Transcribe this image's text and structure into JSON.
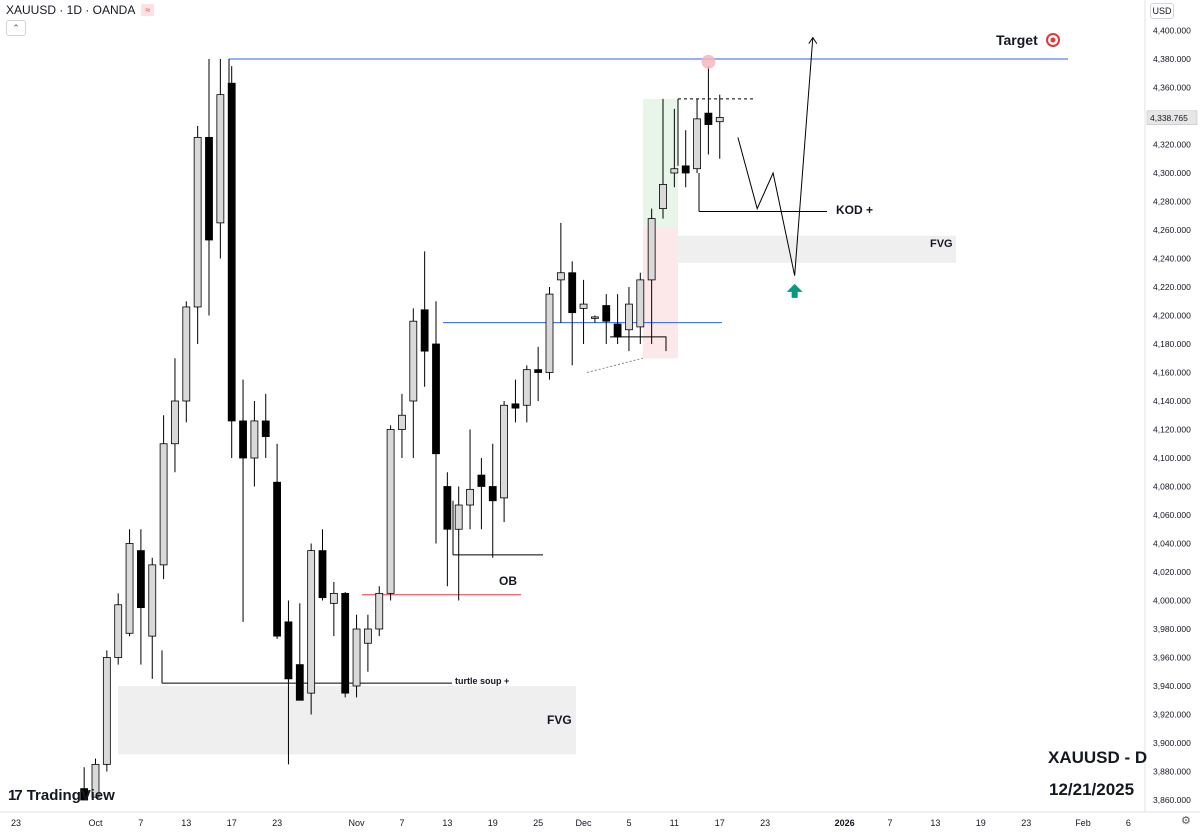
{
  "header": {
    "title": "XAUUSD · 1D · OANDA",
    "badge": "≈"
  },
  "currency_button": "USD",
  "brand": {
    "logo_mark": "17",
    "name": "TradingView"
  },
  "watermark": {
    "symbol": "XAUUSD - D",
    "date": "12/21/2025"
  },
  "colors": {
    "bull_fill": "#d9d9d9",
    "bear_fill": "#000000",
    "wick": "#000000",
    "target_line": "#2962ff",
    "level_line": "#2962ff",
    "ob_line": "#f23645",
    "fvg_zone": "#efefef",
    "green_zone": "#e8f5e9",
    "red_zone": "#fce8e8",
    "arrow_up": "#089981"
  },
  "chart_data": {
    "type": "candlestick",
    "symbol": "XAUUSD",
    "timeframe": "1D",
    "y_axis": {
      "min": 3860,
      "max": 4400,
      "step": 20,
      "ticks": [
        "3,860.000",
        "3,880.000",
        "3,900.000",
        "3,920.000",
        "3,940.000",
        "3,960.000",
        "3,980.000",
        "4,000.000",
        "4,020.000",
        "4,040.000",
        "4,060.000",
        "4,080.000",
        "4,100.000",
        "4,120.000",
        "4,140.000",
        "4,160.000",
        "4,180.000",
        "4,200.000",
        "4,220.000",
        "4,240.000",
        "4,260.000",
        "4,280.000",
        "4,300.000",
        "4,320.000",
        "4,340.000",
        "4,360.000",
        "4,380.000",
        "4,400.000"
      ],
      "last_price": 4338.765,
      "last_price_label": "4,338.765"
    },
    "x_axis": {
      "ticks": [
        {
          "label": "23",
          "bar": -7
        },
        {
          "label": "Oct",
          "bar": 0
        },
        {
          "label": "7",
          "bar": 4
        },
        {
          "label": "13",
          "bar": 8
        },
        {
          "label": "17",
          "bar": 12
        },
        {
          "label": "23",
          "bar": 16
        },
        {
          "label": "Nov",
          "bar": 23
        },
        {
          "label": "7",
          "bar": 27
        },
        {
          "label": "13",
          "bar": 31
        },
        {
          "label": "19",
          "bar": 35
        },
        {
          "label": "25",
          "bar": 39
        },
        {
          "label": "Dec",
          "bar": 43
        },
        {
          "label": "5",
          "bar": 47
        },
        {
          "label": "11",
          "bar": 51
        },
        {
          "label": "17",
          "bar": 55
        },
        {
          "label": "23",
          "bar": 59
        },
        {
          "label": "2026",
          "bar": 66
        },
        {
          "label": "7",
          "bar": 70
        },
        {
          "label": "13",
          "bar": 74
        },
        {
          "label": "19",
          "bar": 78
        },
        {
          "label": "23",
          "bar": 82
        },
        {
          "label": "Feb",
          "bar": 87
        },
        {
          "label": "6",
          "bar": 91
        }
      ]
    },
    "candles": [
      {
        "bar": -1,
        "o": 3868,
        "h": 3883,
        "l": 3862,
        "c": 3860
      },
      {
        "bar": 0,
        "o": 3862,
        "h": 3889,
        "l": 3862,
        "c": 3885
      },
      {
        "bar": 1,
        "o": 3885,
        "h": 3965,
        "l": 3880,
        "c": 3960
      },
      {
        "bar": 2,
        "o": 3960,
        "h": 4005,
        "l": 3955,
        "c": 3997
      },
      {
        "bar": 3,
        "o": 3977,
        "h": 4050,
        "l": 3975,
        "c": 4040
      },
      {
        "bar": 4,
        "o": 4035,
        "h": 4050,
        "l": 3955,
        "c": 3995
      },
      {
        "bar": 5,
        "o": 3975,
        "h": 4030,
        "l": 3945,
        "c": 4025
      },
      {
        "bar": 6,
        "o": 4025,
        "h": 4130,
        "l": 4015,
        "c": 4110
      },
      {
        "bar": 7,
        "o": 4110,
        "h": 4170,
        "l": 4090,
        "c": 4140
      },
      {
        "bar": 8,
        "o": 4140,
        "h": 4210,
        "l": 4125,
        "c": 4206
      },
      {
        "bar": 9,
        "o": 4206,
        "h": 4333,
        "l": 4180,
        "c": 4325
      },
      {
        "bar": 10,
        "o": 4325,
        "h": 4380,
        "l": 4200,
        "c": 4253
      },
      {
        "bar": 11,
        "o": 4265,
        "h": 4380,
        "l": 4240,
        "c": 4355
      },
      {
        "bar": 12,
        "o": 4363,
        "h": 4375,
        "l": 4100,
        "c": 4126
      },
      {
        "bar": 13,
        "o": 4126,
        "h": 4155,
        "l": 3985,
        "c": 4100
      },
      {
        "bar": 14,
        "o": 4100,
        "h": 4140,
        "l": 4080,
        "c": 4126
      },
      {
        "bar": 15,
        "o": 4126,
        "h": 4145,
        "l": 4100,
        "c": 4115
      },
      {
        "bar": 16,
        "o": 4083,
        "h": 4110,
        "l": 3973,
        "c": 3975
      },
      {
        "bar": 17,
        "o": 3985,
        "h": 4000,
        "l": 3885,
        "c": 3945
      },
      {
        "bar": 18,
        "o": 3955,
        "h": 3998,
        "l": 3930,
        "c": 3930
      },
      {
        "bar": 19,
        "o": 3935,
        "h": 4040,
        "l": 3920,
        "c": 4035
      },
      {
        "bar": 20,
        "o": 4035,
        "h": 4050,
        "l": 4000,
        "c": 4002
      },
      {
        "bar": 21,
        "o": 3998,
        "h": 4013,
        "l": 3975,
        "c": 4005
      },
      {
        "bar": 22,
        "o": 4005,
        "h": 4006,
        "l": 3932,
        "c": 3935
      },
      {
        "bar": 23,
        "o": 3940,
        "h": 3990,
        "l": 3932,
        "c": 3980
      },
      {
        "bar": 24,
        "o": 3970,
        "h": 3990,
        "l": 3950,
        "c": 3980
      },
      {
        "bar": 25,
        "o": 3980,
        "h": 4010,
        "l": 3975,
        "c": 4005
      },
      {
        "bar": 26,
        "o": 4005,
        "h": 4123,
        "l": 4000,
        "c": 4120
      },
      {
        "bar": 27,
        "o": 4120,
        "h": 4145,
        "l": 4100,
        "c": 4130
      },
      {
        "bar": 28,
        "o": 4140,
        "h": 4205,
        "l": 4100,
        "c": 4196
      },
      {
        "bar": 29,
        "o": 4204,
        "h": 4245,
        "l": 4150,
        "c": 4175
      },
      {
        "bar": 30,
        "o": 4180,
        "h": 4210,
        "l": 4040,
        "c": 4103
      },
      {
        "bar": 31,
        "o": 4080,
        "h": 4090,
        "l": 4010,
        "c": 4050
      },
      {
        "bar": 32,
        "o": 4050,
        "h": 4080,
        "l": 4000,
        "c": 4067
      },
      {
        "bar": 33,
        "o": 4067,
        "h": 4120,
        "l": 4050,
        "c": 4078
      },
      {
        "bar": 34,
        "o": 4088,
        "h": 4100,
        "l": 4050,
        "c": 4080
      },
      {
        "bar": 35,
        "o": 4080,
        "h": 4110,
        "l": 4030,
        "c": 4070
      },
      {
        "bar": 36,
        "o": 4072,
        "h": 4140,
        "l": 4055,
        "c": 4137
      },
      {
        "bar": 37,
        "o": 4138,
        "h": 4155,
        "l": 4125,
        "c": 4135
      },
      {
        "bar": 38,
        "o": 4137,
        "h": 4165,
        "l": 4125,
        "c": 4162
      },
      {
        "bar": 39,
        "o": 4162,
        "h": 4178,
        "l": 4140,
        "c": 4160
      },
      {
        "bar": 40,
        "o": 4160,
        "h": 4220,
        "l": 4155,
        "c": 4215
      },
      {
        "bar": 41,
        "o": 4225,
        "h": 4265,
        "l": 4195,
        "c": 4230
      },
      {
        "bar": 42,
        "o": 4230,
        "h": 4238,
        "l": 4165,
        "c": 4202
      },
      {
        "bar": 43,
        "o": 4205,
        "h": 4225,
        "l": 4180,
        "c": 4208
      },
      {
        "bar": 44,
        "o": 4198,
        "h": 4200,
        "l": 4195,
        "c": 4199
      },
      {
        "bar": 45,
        "o": 4207,
        "h": 4215,
        "l": 4180,
        "c": 4196
      },
      {
        "bar": 46,
        "o": 4194,
        "h": 4215,
        "l": 4180,
        "c": 4185
      },
      {
        "bar": 47,
        "o": 4190,
        "h": 4220,
        "l": 4175,
        "c": 4208
      },
      {
        "bar": 48,
        "o": 4192,
        "h": 4230,
        "l": 4180,
        "c": 4225
      },
      {
        "bar": 49,
        "o": 4225,
        "h": 4275,
        "l": 4180,
        "c": 4268
      },
      {
        "bar": 50,
        "o": 4275,
        "h": 4352,
        "l": 4268,
        "c": 4292
      },
      {
        "bar": 51,
        "o": 4300,
        "h": 4345,
        "l": 4290,
        "c": 4303
      },
      {
        "bar": 52,
        "o": 4305,
        "h": 4330,
        "l": 4290,
        "c": 4300
      },
      {
        "bar": 53,
        "o": 4303,
        "h": 4352,
        "l": 4300,
        "c": 4338
      },
      {
        "bar": 54,
        "o": 4342,
        "h": 4375,
        "l": 4313,
        "c": 4334
      },
      {
        "bar": 55,
        "o": 4336,
        "h": 4355,
        "l": 4310,
        "c": 4339
      }
    ]
  },
  "annotations": {
    "target": {
      "label": "Target",
      "icon": "target-icon",
      "price": 4380
    },
    "kod": {
      "label": "KOD +",
      "price": 4273
    },
    "fvg_upper": {
      "label": "FVG",
      "top": 4256,
      "bottom": 4237
    },
    "fvg_lower": {
      "label": "FVG",
      "top": 3940,
      "bottom": 3892
    },
    "ob": {
      "label": "OB",
      "price": 4004
    },
    "turtle_soup": {
      "label": "turtle soup +",
      "price": 3942
    },
    "level_4195": {
      "price": 4195
    },
    "ob_box": {
      "price": 4032
    },
    "dash_high": {
      "price": 4352
    },
    "projected_path": [
      {
        "bar": 56.6,
        "p": 4325
      },
      {
        "bar": 58.3,
        "p": 4275
      },
      {
        "bar": 59.7,
        "p": 4300
      },
      {
        "bar": 61.6,
        "p": 4228
      },
      {
        "bar": 63.2,
        "p": 4395
      }
    ],
    "up_arrow": {
      "bar": 61.6,
      "p": 4218
    }
  }
}
